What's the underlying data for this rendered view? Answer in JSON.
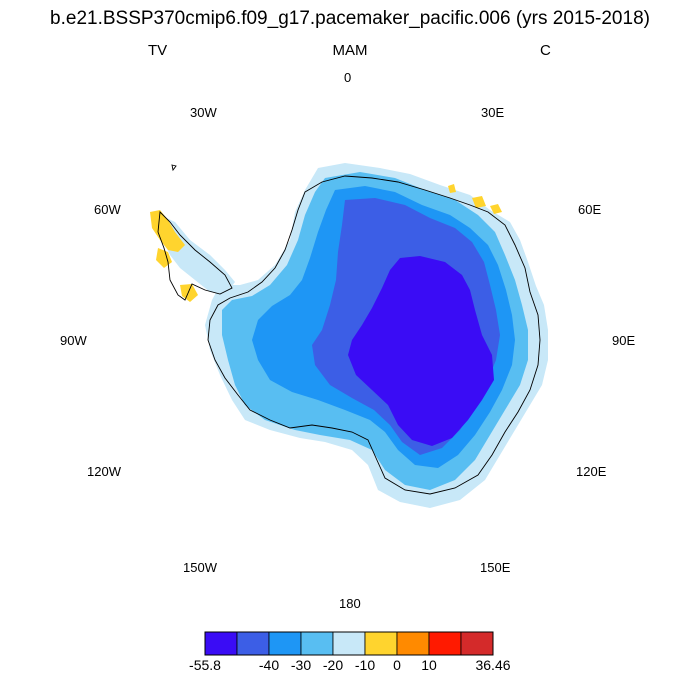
{
  "header": {
    "title": "b.e21.BSSP370cmip6.f09_g17.pacemaker_pacific.006 (yrs 2015-2018)",
    "left_label": "TV",
    "center_label": "MAM",
    "right_label": "C"
  },
  "longitude_labels": {
    "lon_0": "0",
    "lon_30e": "30E",
    "lon_60e": "60E",
    "lon_90e": "90E",
    "lon_120e": "120E",
    "lon_150e": "150E",
    "lon_180": "180",
    "lon_150w": "150W",
    "lon_120w": "120W",
    "lon_90w": "90W",
    "lon_60w": "60W",
    "lon_30w": "30W"
  },
  "colorbar": {
    "colors": [
      "#3a0cf5",
      "#3c5ee6",
      "#1e96f5",
      "#58bef2",
      "#c8e8f8",
      "#ffd42e",
      "#ff8a00",
      "#ff1a00",
      "#d42a2a"
    ],
    "labels": {
      "min": "-55.8",
      "l40": "-40",
      "l30": "-30",
      "l20": "-20",
      "l10": "-10",
      "l0": "0",
      "p10": "10",
      "max": "36.46"
    }
  }
}
